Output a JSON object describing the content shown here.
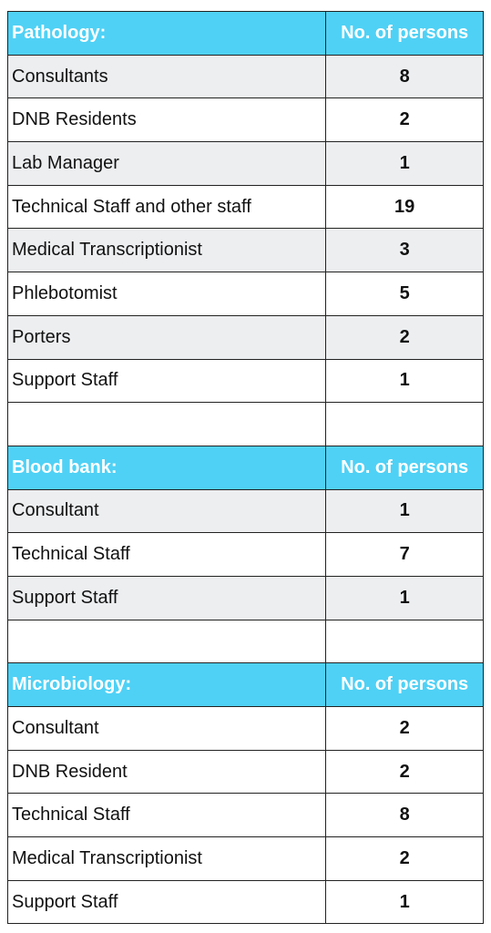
{
  "sections": [
    {
      "title": "Pathology:",
      "column": "No. of persons",
      "rows": [
        [
          "Consultants",
          8
        ],
        [
          "DNB Residents",
          2
        ],
        [
          "Lab Manager",
          1
        ],
        [
          "Technical Staff and other staff",
          19
        ],
        [
          "Medical Transcriptionist",
          3
        ],
        [
          "Phlebotomist",
          5
        ],
        [
          "Porters",
          2
        ],
        [
          "Support Staff",
          1
        ]
      ]
    },
    {
      "title": "Blood bank:",
      "column": "No. of persons",
      "rows": [
        [
          "Consultant",
          1
        ],
        [
          "Technical Staff",
          7
        ],
        [
          "Support Staff",
          1
        ]
      ]
    },
    {
      "title": "Microbiology:",
      "column": "No. of persons",
      "rows": [
        [
          "Consultant",
          2
        ],
        [
          "DNB Resident",
          2
        ],
        [
          "Technical Staff",
          8
        ],
        [
          "Medical Transcriptionist",
          2
        ],
        [
          "Support Staff",
          1
        ]
      ]
    }
  ]
}
